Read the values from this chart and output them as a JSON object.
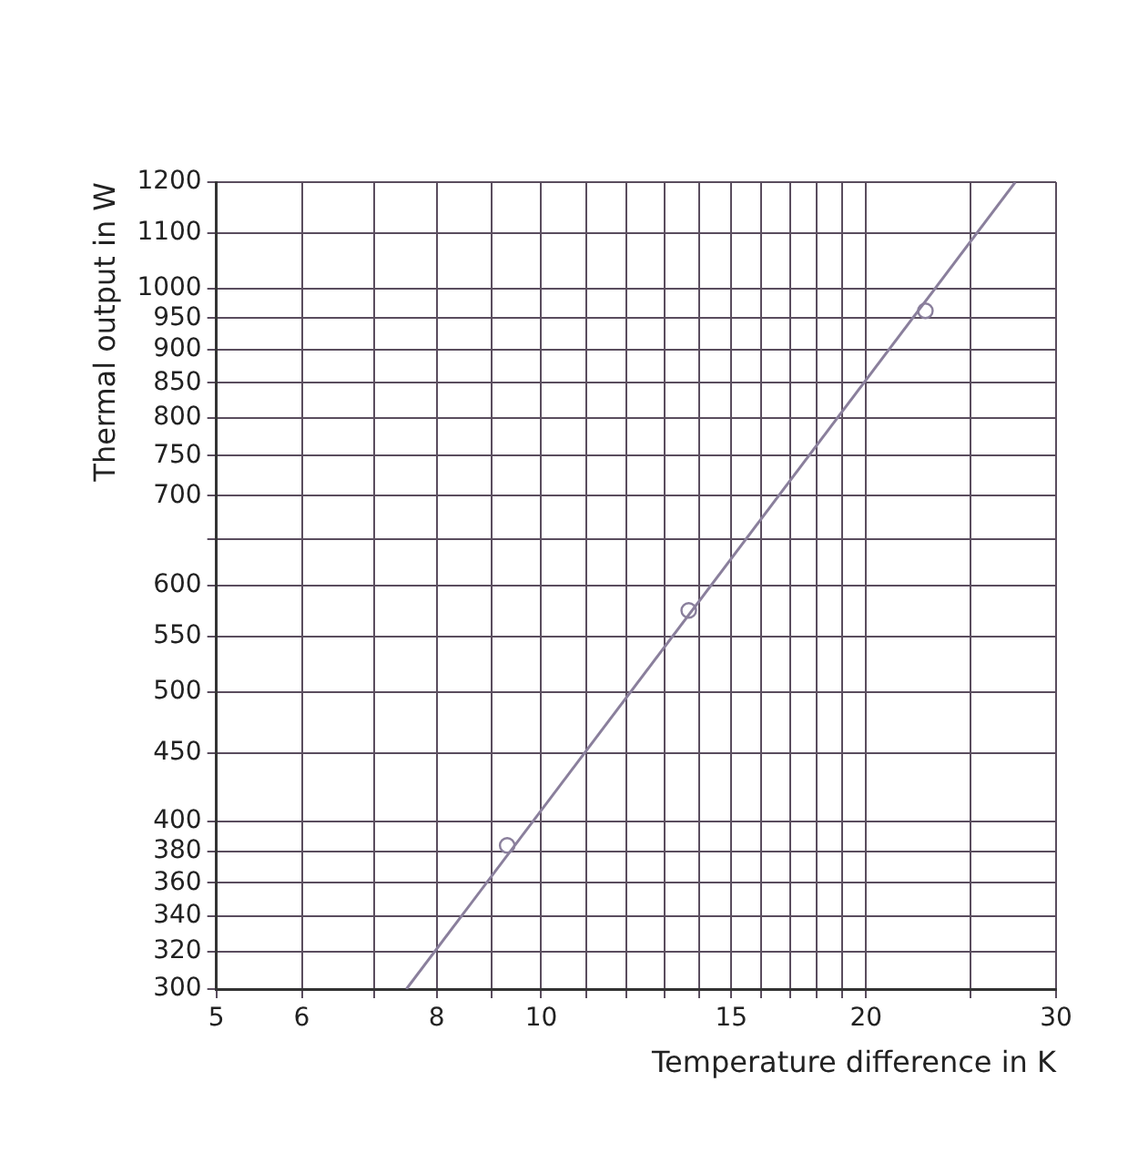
{
  "chart_data": {
    "type": "line",
    "xlabel": "Temperature difference in K",
    "ylabel": "Thermal output in W",
    "log": "xy",
    "grid": true,
    "legend": false,
    "xlim": [
      5,
      30
    ],
    "ylim": [
      300,
      1200
    ],
    "xticks": [
      5,
      6,
      {
        "value": 7,
        "label": null
      },
      8,
      {
        "value": 9,
        "label": null
      },
      10,
      {
        "value": 11,
        "label": null
      },
      {
        "value": 12,
        "label": null
      },
      {
        "value": 13,
        "label": null
      },
      {
        "value": 14,
        "label": null
      },
      15,
      {
        "value": 16,
        "label": null
      },
      {
        "value": 17,
        "label": null
      },
      {
        "value": 18,
        "label": null
      },
      {
        "value": 19,
        "label": null
      },
      20,
      {
        "value": 25,
        "label": null
      },
      30
    ],
    "yticks": [
      300,
      320,
      340,
      360,
      380,
      400,
      450,
      500,
      550,
      600,
      {
        "value": 650,
        "label": null
      },
      700,
      750,
      800,
      850,
      900,
      950,
      1000,
      1100,
      1200
    ],
    "series": [
      {
        "color": "#8a7f9c",
        "x": [
          7.5,
          27.5
        ],
        "values": [
          300,
          1200
        ],
        "marker": "none",
        "line_style": "solid"
      },
      {
        "type": "scatter",
        "color": "#8a7f9c",
        "x": [
          9.3,
          13.7,
          22.7
        ],
        "values": [
          384,
          575,
          962
        ],
        "marker": "circle"
      }
    ]
  }
}
